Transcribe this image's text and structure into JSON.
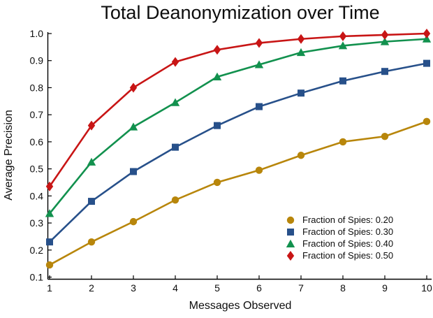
{
  "title": "Total Deanonymization over Time",
  "chart_data": {
    "type": "line",
    "title": "Total Deanonymization over Time",
    "xlabel": "Messages Observed",
    "ylabel": "Average Precision",
    "x": [
      1,
      2,
      3,
      4,
      5,
      6,
      7,
      8,
      9,
      10
    ],
    "xlim": [
      1,
      10
    ],
    "ylim": [
      0.1,
      1.0
    ],
    "xticks": [
      1,
      2,
      3,
      4,
      5,
      6,
      7,
      8,
      9,
      10
    ],
    "yticks": [
      0.1,
      0.2,
      0.3,
      0.4,
      0.5,
      0.6,
      0.7,
      0.8,
      0.9,
      1.0
    ],
    "grid": false,
    "legend_position": "lower-right",
    "legend_frame": false,
    "axis_color": "#000000",
    "text_color": "#0d0d0d",
    "series": [
      {
        "name": "Fraction of Spies: 0.20",
        "marker": "circle",
        "color": "#B8860B",
        "values": [
          0.145,
          0.23,
          0.305,
          0.385,
          0.45,
          0.495,
          0.55,
          0.6,
          0.62,
          0.675
        ]
      },
      {
        "name": "Fraction of Spies: 0.30",
        "marker": "square",
        "color": "#27508A",
        "values": [
          0.23,
          0.38,
          0.49,
          0.58,
          0.66,
          0.73,
          0.78,
          0.825,
          0.86,
          0.89
        ]
      },
      {
        "name": "Fraction of Spies: 0.40",
        "marker": "triangle",
        "color": "#12914E",
        "values": [
          0.335,
          0.525,
          0.655,
          0.745,
          0.84,
          0.885,
          0.93,
          0.955,
          0.97,
          0.98
        ]
      },
      {
        "name": "Fraction of Spies: 0.50",
        "marker": "diamond",
        "color": "#C81515",
        "values": [
          0.435,
          0.66,
          0.8,
          0.895,
          0.94,
          0.965,
          0.98,
          0.99,
          0.995,
          1.0
        ]
      }
    ]
  }
}
